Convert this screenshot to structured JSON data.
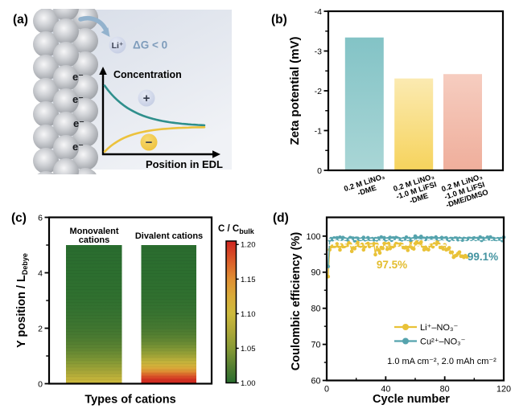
{
  "figure": {
    "background": "#ffffff"
  },
  "panels": {
    "a": {
      "label": "(a)",
      "electron_label": "e⁻",
      "li_ion_label": "Li⁺",
      "delta_g_label": "ΔG < 0",
      "yaxis_label": "Concentration",
      "xaxis_label": "Position in EDL",
      "cation_sign": "+",
      "anion_sign": "−",
      "colors": {
        "background_top": "#d7dde8",
        "background_bottom": "#f0f2f6",
        "cation_curve": "#2f8f8c",
        "anion_curve": "#ecc23d",
        "arrow": "#92b2cd",
        "cation_fill": "#c9d1e6",
        "anion_fill": "#f0c343",
        "axis": "#000000"
      }
    },
    "b": {
      "label": "(b)"
    },
    "c": {
      "label": "(c)"
    },
    "d": {
      "label": "(d)"
    }
  },
  "chart_data": [
    {
      "panel": "a",
      "type": "diagram",
      "title": "Schematic of cation adsorption in the electric double layer (EDL)",
      "annotations": [
        "e⁻",
        "Li⁺",
        "ΔG < 0",
        "Concentration",
        "Position in EDL",
        "+",
        "−"
      ]
    },
    {
      "panel": "b",
      "type": "bar",
      "ylabel": "Zeta potential (mV)",
      "categories": [
        [
          "0.2 M LiNO₃",
          "-DME"
        ],
        [
          "0.2 M LiNO₃",
          "-1.0 M LiFSI",
          "-DME"
        ],
        [
          "0.2 M LiNO₃",
          "-1.0 M LiFSI",
          "-DME/DMSO"
        ]
      ],
      "values": [
        -3.34,
        -2.31,
        -2.42
      ],
      "ylim": [
        0,
        -4
      ],
      "yticks": [
        0,
        -1,
        -2,
        -3,
        -4
      ],
      "ytick_labels": [
        "0",
        "-1",
        "-2",
        "-3",
        "-4"
      ],
      "bar_gradients": [
        [
          "#83c3c6",
          "#a9d6d6"
        ],
        [
          "#fbeab1",
          "#f6d35c"
        ],
        [
          "#f6cdc0",
          "#efae9b"
        ]
      ]
    },
    {
      "panel": "c",
      "type": "heatmap",
      "xlabel": "Types of cations",
      "ylabel": {
        "main": "Y position / L",
        "sub": "Debye"
      },
      "ylim": [
        0,
        6
      ],
      "yticks": [
        0,
        2,
        4,
        6
      ],
      "yminor": [
        1,
        3,
        5
      ],
      "bar_span": [
        0,
        5
      ],
      "columns": [
        {
          "name_lines": [
            "Monovalent",
            "cations"
          ],
          "profile": [
            [
              0.0,
              1.1
            ],
            [
              0.2,
              1.088
            ],
            [
              0.4,
              1.073
            ],
            [
              0.6,
              1.06
            ],
            [
              0.8,
              1.048
            ],
            [
              1.0,
              1.039
            ],
            [
              1.25,
              1.029
            ],
            [
              1.5,
              1.022
            ],
            [
              1.75,
              1.016
            ],
            [
              2.0,
              1.012
            ],
            [
              2.5,
              1.0065
            ],
            [
              3.0,
              1.0035
            ],
            [
              3.5,
              1.002
            ],
            [
              4.0,
              1.001
            ],
            [
              4.5,
              1.0005
            ],
            [
              5.0,
              1.0002
            ]
          ]
        },
        {
          "name_lines": [
            "Divalent cations"
          ],
          "profile": [
            [
              0.0,
              1.208
            ],
            [
              0.15,
              1.198
            ],
            [
              0.3,
              1.176
            ],
            [
              0.45,
              1.148
            ],
            [
              0.6,
              1.12
            ],
            [
              0.8,
              1.09
            ],
            [
              1.0,
              1.067
            ],
            [
              1.25,
              1.047
            ],
            [
              1.5,
              1.033
            ],
            [
              1.75,
              1.023
            ],
            [
              2.0,
              1.016
            ],
            [
              2.5,
              1.008
            ],
            [
              3.0,
              1.004
            ],
            [
              3.5,
              1.002
            ],
            [
              4.0,
              1.001
            ],
            [
              4.5,
              1.0006
            ],
            [
              5.0,
              1.0003
            ]
          ]
        }
      ],
      "colorbar": {
        "title": {
          "main": "C / C",
          "sub": "bulk"
        },
        "ticks": [
          1.0,
          1.05,
          1.1,
          1.15,
          1.2
        ],
        "tick_labels": [
          "1.00",
          "1.05",
          "1.10",
          "1.15",
          "1.20"
        ],
        "lim": [
          1.0,
          1.205
        ],
        "colormap": [
          [
            1.0,
            "#2a6d2f"
          ],
          [
            1.02,
            "#4e7c31"
          ],
          [
            1.05,
            "#879a35"
          ],
          [
            1.08,
            "#b5ab39"
          ],
          [
            1.1,
            "#cdba3c"
          ],
          [
            1.125,
            "#d9ab39"
          ],
          [
            1.15,
            "#df8f33"
          ],
          [
            1.175,
            "#db5f2a"
          ],
          [
            1.205,
            "#cf2520"
          ]
        ]
      }
    },
    {
      "panel": "d",
      "type": "line",
      "xlabel": "Cycle number",
      "ylabel": "Coulombic efficiency (%)",
      "xlim": [
        0,
        120
      ],
      "ylim": [
        60,
        105.2
      ],
      "xticks": [
        0,
        40,
        80,
        120
      ],
      "xminor": [
        20,
        60,
        100
      ],
      "yticks": [
        60,
        70,
        80,
        90,
        100
      ],
      "yminor": [
        65,
        75,
        85,
        95
      ],
      "note": "1.0 mA cm⁻², 2.0 mAh cm⁻²",
      "dash_color": "#ffffff",
      "series": [
        {
          "name": "Li⁺–NO₃⁻",
          "color": "#e9c238",
          "mean_line": 97.5,
          "annotation": {
            "text": "97.5%",
            "color": "#e3bd2e"
          },
          "x": [
            1,
            2,
            3,
            4,
            5,
            6,
            7,
            8,
            9,
            10,
            11,
            12,
            13,
            14,
            15,
            16,
            17,
            18,
            19,
            20,
            21,
            22,
            23,
            24,
            25,
            26,
            27,
            28,
            29,
            30,
            31,
            32,
            33,
            34,
            35,
            36,
            37,
            38,
            39,
            40,
            41,
            42,
            43,
            44,
            45,
            46,
            47,
            48,
            49,
            50,
            51,
            52,
            53,
            54,
            55,
            56,
            57,
            58,
            59,
            60,
            61,
            62,
            63,
            64,
            65,
            66,
            67,
            68,
            69,
            70,
            71,
            72,
            73,
            74,
            75,
            76,
            77,
            78,
            79,
            80,
            81,
            82,
            83,
            84,
            85,
            86,
            87,
            88,
            89,
            90,
            91,
            92,
            93,
            94,
            95
          ],
          "y": [
            88.8,
            96.2,
            97.1,
            97.19,
            97.17,
            97.22,
            97.83,
            97.2,
            96.18,
            97.55,
            97.1,
            97.14,
            97.39,
            97.47,
            98.17,
            97.79,
            95.78,
            96.75,
            96.54,
            97.48,
            98.28,
            97.33,
            97.22,
            97.7,
            96.21,
            97.07,
            97.67,
            97.96,
            97.12,
            97.58,
            97.49,
            97.89,
            94.87,
            97.73,
            96.16,
            95.34,
            96.84,
            96.61,
            97.96,
            97.8,
            96.39,
            97.94,
            96.55,
            97.24,
            97.08,
            97.39,
            97.91,
            97.78,
            97.56,
            97.79,
            97.66,
            96.83,
            96.76,
            96.95,
            96.07,
            97.11,
            98.5,
            96.69,
            96.48,
            97.88,
            98.37,
            97.68,
            97.93,
            98.37,
            97.23,
            96.23,
            96.9,
            96.41,
            96.22,
            97.33,
            97.49,
            97.06,
            97.84,
            97.74,
            98.5,
            97.76,
            96.84,
            96.88,
            96.46,
            97.57,
            96.21,
            96.37,
            96.76,
            95.44,
            95.54,
            94.16,
            94.51,
            94.67,
            95.19,
            95.56,
            94.43,
            94.42,
            94.13,
            94.59,
            94.23
          ]
        },
        {
          "name": "Cu²⁺–NO₃⁻",
          "color": "#55a3ad",
          "mean_line": 99.1,
          "annotation": {
            "text": "99.1%",
            "color": "#4494a1"
          },
          "x": [
            1,
            2,
            3,
            4,
            5,
            6,
            7,
            8,
            9,
            10,
            11,
            12,
            13,
            14,
            15,
            16,
            17,
            18,
            19,
            20,
            21,
            22,
            23,
            24,
            25,
            26,
            27,
            28,
            29,
            30,
            31,
            32,
            33,
            34,
            35,
            36,
            37,
            38,
            39,
            40,
            41,
            42,
            43,
            44,
            45,
            46,
            47,
            48,
            49,
            50,
            51,
            52,
            53,
            54,
            55,
            56,
            57,
            58,
            59,
            60,
            61,
            62,
            63,
            64,
            65,
            66,
            67,
            68,
            69,
            70,
            71,
            72,
            73,
            74,
            75,
            76,
            77,
            78,
            79,
            80,
            81,
            82,
            83,
            84,
            85,
            86,
            87,
            88,
            89,
            90,
            91,
            92,
            93,
            94,
            95,
            96,
            97,
            98,
            99,
            100,
            101,
            102,
            103,
            104,
            105,
            106,
            107,
            108,
            109,
            110,
            111,
            112,
            113,
            114,
            115,
            116,
            117,
            118,
            119,
            120
          ],
          "y": [
            91.6,
            98.9,
            99.31,
            99.03,
            99.45,
            99.33,
            99.52,
            99.24,
            99.68,
            99.17,
            99.6,
            99.28,
            99.14,
            99.0,
            99.22,
            99.56,
            99.43,
            99.4,
            98.73,
            99.41,
            99.37,
            99.13,
            99.11,
            99.25,
            99.63,
            99.02,
            99.16,
            99.55,
            99.15,
            99.17,
            99.27,
            98.98,
            99.3,
            98.98,
            99.44,
            99.25,
            99.75,
            99.31,
            99.55,
            98.96,
            99.22,
            99.32,
            99.63,
            98.88,
            99.47,
            99.38,
            99.59,
            99.41,
            99.26,
            99.14,
            98.98,
            99.29,
            99.21,
            99.69,
            99.12,
            99.32,
            98.9,
            99.16,
            99.31,
            99.98,
            99.57,
            99.24,
            99.55,
            99.9,
            99.36,
            99.36,
            99.1,
            99.5,
            99.27,
            99.4,
            99.53,
            99.38,
            99.31,
            99.72,
            99.3,
            99.18,
            99.27,
            99.58,
            99.28,
            99.36,
            99.51,
            99.14,
            98.87,
            99.32,
            99.3,
            99.12,
            99.44,
            99.38,
            99.03,
            99.36,
            99.21,
            98.92,
            99.35,
            99.24,
            99.09,
            99.37,
            99.36,
            99.12,
            99.34,
            99.47,
            99.09,
            99.33,
            99.25,
            99.75,
            98.84,
            99.4,
            99.18,
            99.23,
            99.67,
            99.25,
            99.74,
            99.15,
            99.33,
            99.14,
            99.1,
            99.26,
            99.19,
            99.29,
            98.79,
            99.69
          ]
        }
      ]
    }
  ]
}
